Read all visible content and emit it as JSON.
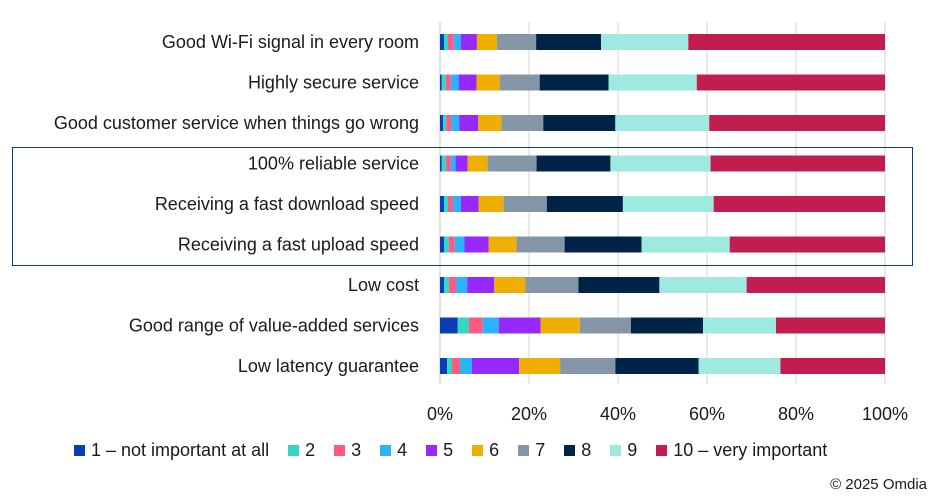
{
  "chart_data": {
    "type": "bar",
    "orientation": "horizontal",
    "stacked": true,
    "title": "",
    "xlabel": "",
    "ylabel": "",
    "xlim": [
      0,
      100
    ],
    "x_ticks": [
      "0%",
      "20%",
      "40%",
      "60%",
      "80%",
      "100%"
    ],
    "grid": "vertical",
    "legend_position": "bottom",
    "categories": [
      "Good Wi-Fi signal in every room",
      "Highly secure service",
      "Good customer service when things go wrong",
      "100% reliable service",
      "Receiving a fast download speed",
      "Receiving a fast upload speed",
      "Low cost",
      "Good range of value-added services",
      "Low latency guarantee"
    ],
    "highlighted_categories": [
      "100% reliable service",
      "Receiving a fast download speed",
      "Receiving a fast upload speed"
    ],
    "series": [
      {
        "name": "1 – not important at all",
        "color": "#0a3db8",
        "values": [
          0.9,
          0.4,
          0.7,
          0.4,
          0.9,
          0.9,
          0.9,
          4.0,
          1.6
        ]
      },
      {
        "name": "2",
        "color": "#35d6c4",
        "values": [
          0.9,
          0.9,
          0.7,
          0.9,
          0.9,
          1.1,
          1.1,
          2.5,
          1.1
        ]
      },
      {
        "name": "3",
        "color": "#ff5a7f",
        "values": [
          1.3,
          1.1,
          1.1,
          1.1,
          1.1,
          1.3,
          1.6,
          3.1,
          1.8
        ]
      },
      {
        "name": "4",
        "color": "#2ab3ff",
        "values": [
          1.6,
          1.8,
          1.8,
          1.1,
          1.8,
          2.2,
          2.5,
          3.6,
          2.7
        ]
      },
      {
        "name": "5",
        "color": "#9629ff",
        "values": [
          3.6,
          4.0,
          4.3,
          2.7,
          4.0,
          5.4,
          6.1,
          9.4,
          10.6
        ]
      },
      {
        "name": "6",
        "color": "#f0ae00",
        "values": [
          4.5,
          5.2,
          5.2,
          4.5,
          5.6,
          6.3,
          7.0,
          8.8,
          9.2
        ]
      },
      {
        "name": "7",
        "color": "#8596a6",
        "values": [
          8.8,
          9.0,
          9.4,
          11.0,
          9.7,
          10.8,
          11.9,
          11.5,
          12.4
        ]
      },
      {
        "name": "8",
        "color": "#002447",
        "values": [
          14.6,
          15.5,
          16.2,
          16.6,
          17.1,
          17.3,
          18.2,
          16.2,
          18.7
        ]
      },
      {
        "name": "9",
        "color": "#9eeae0",
        "values": [
          19.6,
          19.8,
          21.1,
          22.5,
          20.4,
          19.8,
          19.6,
          16.4,
          18.4
        ]
      },
      {
        "name": "10 – very important",
        "color": "#c21d4f",
        "values": [
          44.2,
          42.3,
          39.5,
          39.2,
          38.5,
          34.9,
          31.1,
          24.5,
          23.5
        ]
      }
    ]
  },
  "colors": {
    "gridline": "#e3e3e3",
    "highlight_border": "#0b3a8c"
  },
  "footer": {
    "copyright": "© 2025 Omdia"
  }
}
